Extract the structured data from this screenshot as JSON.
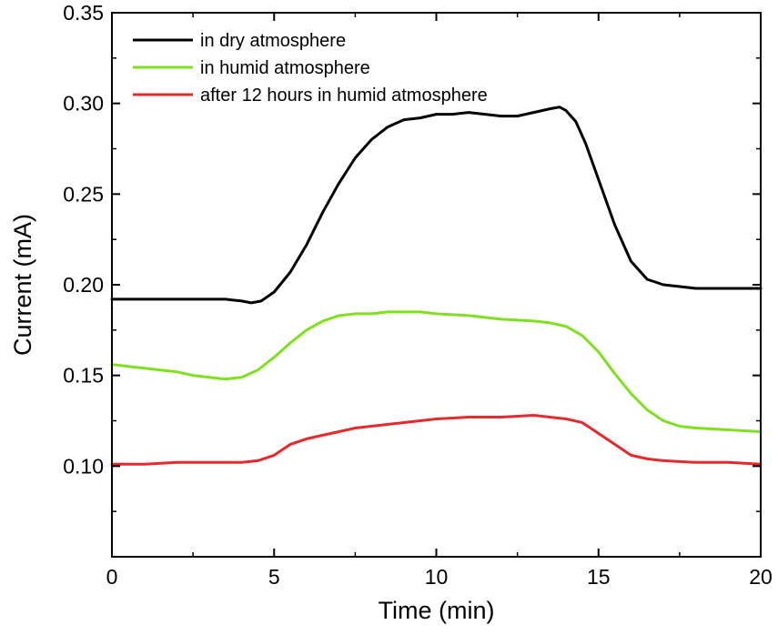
{
  "chart_data": {
    "type": "line",
    "title": "",
    "xlabel": "Time (min)",
    "ylabel": "Current (mA)",
    "xlim": [
      0,
      20
    ],
    "ylim": [
      0.05,
      0.35
    ],
    "xticks": [
      0,
      5,
      10,
      15,
      20
    ],
    "yticks": [
      0.1,
      0.15,
      0.2,
      0.25,
      0.3,
      0.35
    ],
    "ytick_labels": [
      "0.10",
      "0.15",
      "0.20",
      "0.25",
      "0.30",
      "0.35"
    ],
    "xtick_labels": [
      "0",
      "5",
      "10",
      "15",
      "20"
    ],
    "grid": false,
    "legend_position": "top-left",
    "series": [
      {
        "name": "in dry atmosphere",
        "color": "#000000",
        "x": [
          0,
          1,
          2,
          3,
          3.5,
          4,
          4.3,
          4.6,
          5,
          5.5,
          6,
          6.5,
          7,
          7.5,
          8,
          8.5,
          9,
          9.5,
          10,
          10.5,
          11,
          11.5,
          12,
          12.5,
          13,
          13.5,
          13.8,
          14,
          14.3,
          14.6,
          15,
          15.5,
          16,
          16.5,
          17,
          17.5,
          18,
          19,
          20
        ],
        "y": [
          0.192,
          0.192,
          0.192,
          0.192,
          0.192,
          0.191,
          0.19,
          0.191,
          0.196,
          0.207,
          0.222,
          0.24,
          0.256,
          0.27,
          0.28,
          0.287,
          0.291,
          0.292,
          0.294,
          0.294,
          0.295,
          0.294,
          0.293,
          0.293,
          0.295,
          0.297,
          0.298,
          0.296,
          0.29,
          0.278,
          0.258,
          0.233,
          0.213,
          0.203,
          0.2,
          0.199,
          0.198,
          0.198,
          0.198
        ]
      },
      {
        "name": "in humid atmosphere",
        "color": "#7fe01e",
        "x": [
          0,
          0.5,
          1,
          1.5,
          2,
          2.5,
          3,
          3.5,
          4,
          4.5,
          5,
          5.5,
          6,
          6.5,
          7,
          7.5,
          8,
          8.5,
          9,
          9.5,
          10,
          11,
          12,
          13,
          13.5,
          14,
          14.5,
          15,
          15.5,
          16,
          16.5,
          17,
          17.5,
          18,
          19,
          20
        ],
        "y": [
          0.156,
          0.155,
          0.154,
          0.153,
          0.152,
          0.15,
          0.149,
          0.148,
          0.149,
          0.153,
          0.16,
          0.168,
          0.175,
          0.18,
          0.183,
          0.184,
          0.184,
          0.185,
          0.185,
          0.185,
          0.184,
          0.183,
          0.181,
          0.18,
          0.179,
          0.177,
          0.172,
          0.163,
          0.151,
          0.14,
          0.131,
          0.125,
          0.122,
          0.121,
          0.12,
          0.119
        ]
      },
      {
        "name": "after 12 hours in humid atmosphere",
        "color": "#e8282a",
        "x": [
          0,
          1,
          2,
          3,
          4,
          4.5,
          5,
          5.5,
          6,
          6.5,
          7,
          7.5,
          8,
          8.5,
          9,
          10,
          11,
          12,
          13,
          13.5,
          14,
          14.5,
          15,
          15.5,
          16,
          16.5,
          17,
          18,
          19,
          20
        ],
        "y": [
          0.101,
          0.101,
          0.102,
          0.102,
          0.102,
          0.103,
          0.106,
          0.112,
          0.115,
          0.117,
          0.119,
          0.121,
          0.122,
          0.123,
          0.124,
          0.126,
          0.127,
          0.127,
          0.128,
          0.127,
          0.126,
          0.124,
          0.118,
          0.112,
          0.106,
          0.104,
          0.103,
          0.102,
          0.102,
          0.101
        ]
      }
    ]
  }
}
